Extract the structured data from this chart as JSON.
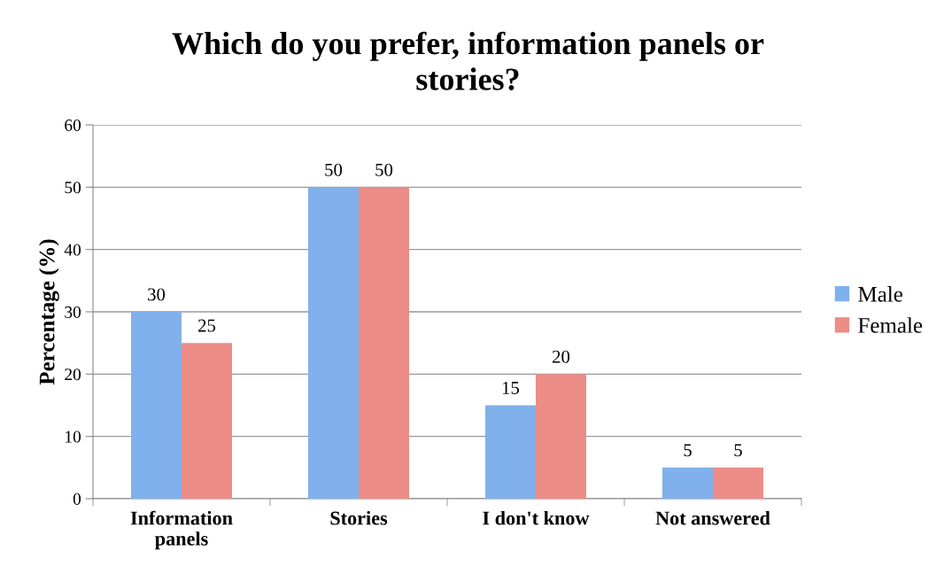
{
  "chart_data": {
    "type": "bar",
    "title": "Which do you prefer, information panels or\nstories?",
    "ylabel": "Percentage (%)",
    "categories": [
      "Information\npanels",
      "Stories",
      "I don't know",
      "Not answered"
    ],
    "series": [
      {
        "name": "Male",
        "color": "#80b1ec",
        "values": [
          30,
          50,
          15,
          5
        ]
      },
      {
        "name": "Female",
        "color": "#ec8d88",
        "values": [
          25,
          50,
          20,
          5
        ]
      }
    ],
    "ylim": [
      0,
      60
    ],
    "yticks": [
      0,
      10,
      20,
      30,
      40,
      50,
      60
    ],
    "grid": "y",
    "legend": "right",
    "data_labels": true
  }
}
